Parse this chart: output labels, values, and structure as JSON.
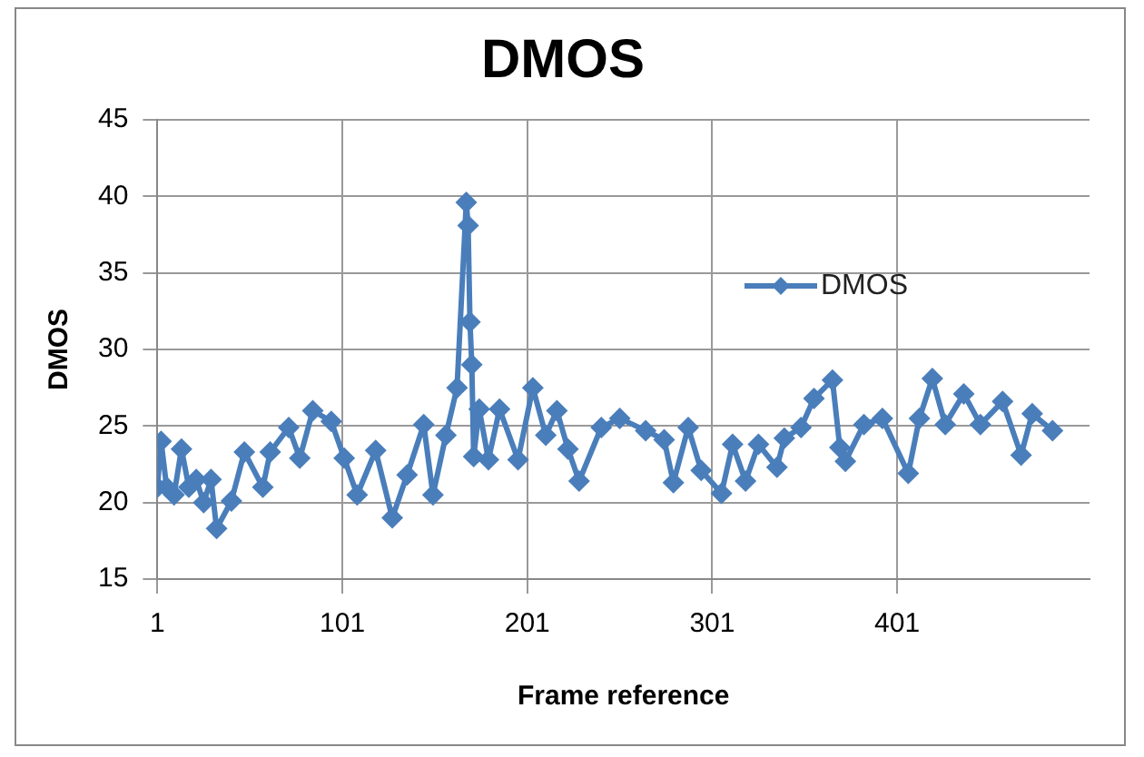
{
  "chart_data": {
    "type": "line",
    "title": "DMOS",
    "xlabel": "Frame reference",
    "ylabel": "DMOS",
    "x": [
      1,
      3,
      6,
      10,
      14,
      18,
      22,
      26,
      30,
      33,
      41,
      48,
      58,
      62,
      72,
      78,
      85,
      95,
      102,
      109,
      119,
      128,
      136,
      145,
      150,
      157,
      163,
      168,
      169,
      170,
      171,
      172,
      175,
      180,
      186,
      196,
      204,
      211,
      217,
      223,
      229,
      241,
      251,
      265,
      275,
      280,
      288,
      295,
      306,
      312,
      319,
      326,
      336,
      340,
      349,
      356,
      366,
      370,
      373,
      383,
      393,
      407,
      413,
      420,
      427,
      437,
      446,
      458,
      468,
      474,
      485
    ],
    "series": [
      {
        "name": "DMOS",
        "color": "#4a7ebb",
        "values": [
          21,
          24,
          21,
          20.5,
          23.5,
          21,
          21.5,
          20,
          21.5,
          18.3,
          20.1,
          23.3,
          21,
          23.3,
          24.9,
          22.9,
          26,
          25.3,
          22.9,
          20.5,
          23.4,
          19,
          21.8,
          25.1,
          20.5,
          24.4,
          27.5,
          39.6,
          38.1,
          31.8,
          29,
          23,
          26.1,
          22.8,
          26.1,
          22.8,
          27.5,
          24.4,
          26,
          23.5,
          21.4,
          24.9,
          25.5,
          24.7,
          24.1,
          21.3,
          24.9,
          22.1,
          20.6,
          23.8,
          21.4,
          23.8,
          22.3,
          24.2,
          24.9,
          26.8,
          28,
          23.6,
          22.7,
          25.1,
          25.5,
          21.9,
          25.5,
          28.1,
          25.1,
          27.1,
          25.1,
          26.6,
          23.1,
          25.8,
          24.7
        ]
      }
    ],
    "xlim": [
      1,
      505
    ],
    "xticks": [
      1,
      101,
      201,
      301,
      401
    ],
    "ylim": [
      15,
      45
    ],
    "yticks": [
      15,
      20,
      25,
      30,
      35,
      40,
      45
    ],
    "grid": true,
    "legend": "right",
    "marker": "diamond",
    "line_style": "solid"
  }
}
